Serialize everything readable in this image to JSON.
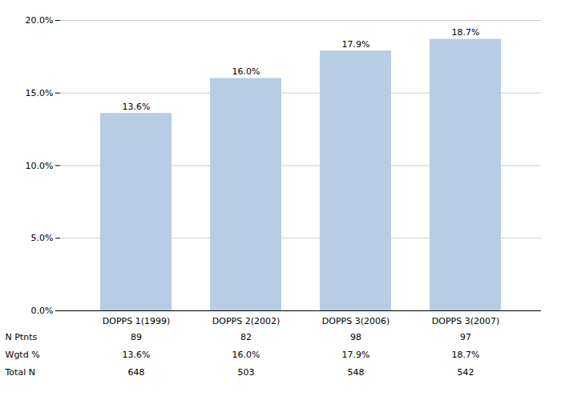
{
  "chart_data": {
    "type": "bar",
    "categories": [
      "DOPPS 1(1999)",
      "DOPPS 2(2002)",
      "DOPPS 3(2006)",
      "DOPPS 3(2007)"
    ],
    "values": [
      13.6,
      16.0,
      17.9,
      18.7
    ],
    "value_labels": [
      "13.6%",
      "16.0%",
      "17.9%",
      "18.7%"
    ],
    "data_labels": true,
    "color": "#b8cce4",
    "ylim": [
      0,
      20.0
    ],
    "yticks": [
      {
        "value": 0,
        "label": "0.0%"
      },
      {
        "value": 5.0,
        "label": "5.0%"
      },
      {
        "value": 10.0,
        "label": "10.0%"
      },
      {
        "value": 15.0,
        "label": "15.0%"
      },
      {
        "value": 20.0,
        "label": "20.0%"
      }
    ],
    "grid": true,
    "table": {
      "row_labels": [
        "N Ptnts",
        "Wgtd %",
        "Total N"
      ],
      "cells": [
        [
          "89",
          "82",
          "98",
          "97"
        ],
        [
          "13.6%",
          "16.0%",
          "17.9%",
          "18.7%"
        ],
        [
          "648",
          "503",
          "548",
          "542"
        ]
      ]
    }
  }
}
